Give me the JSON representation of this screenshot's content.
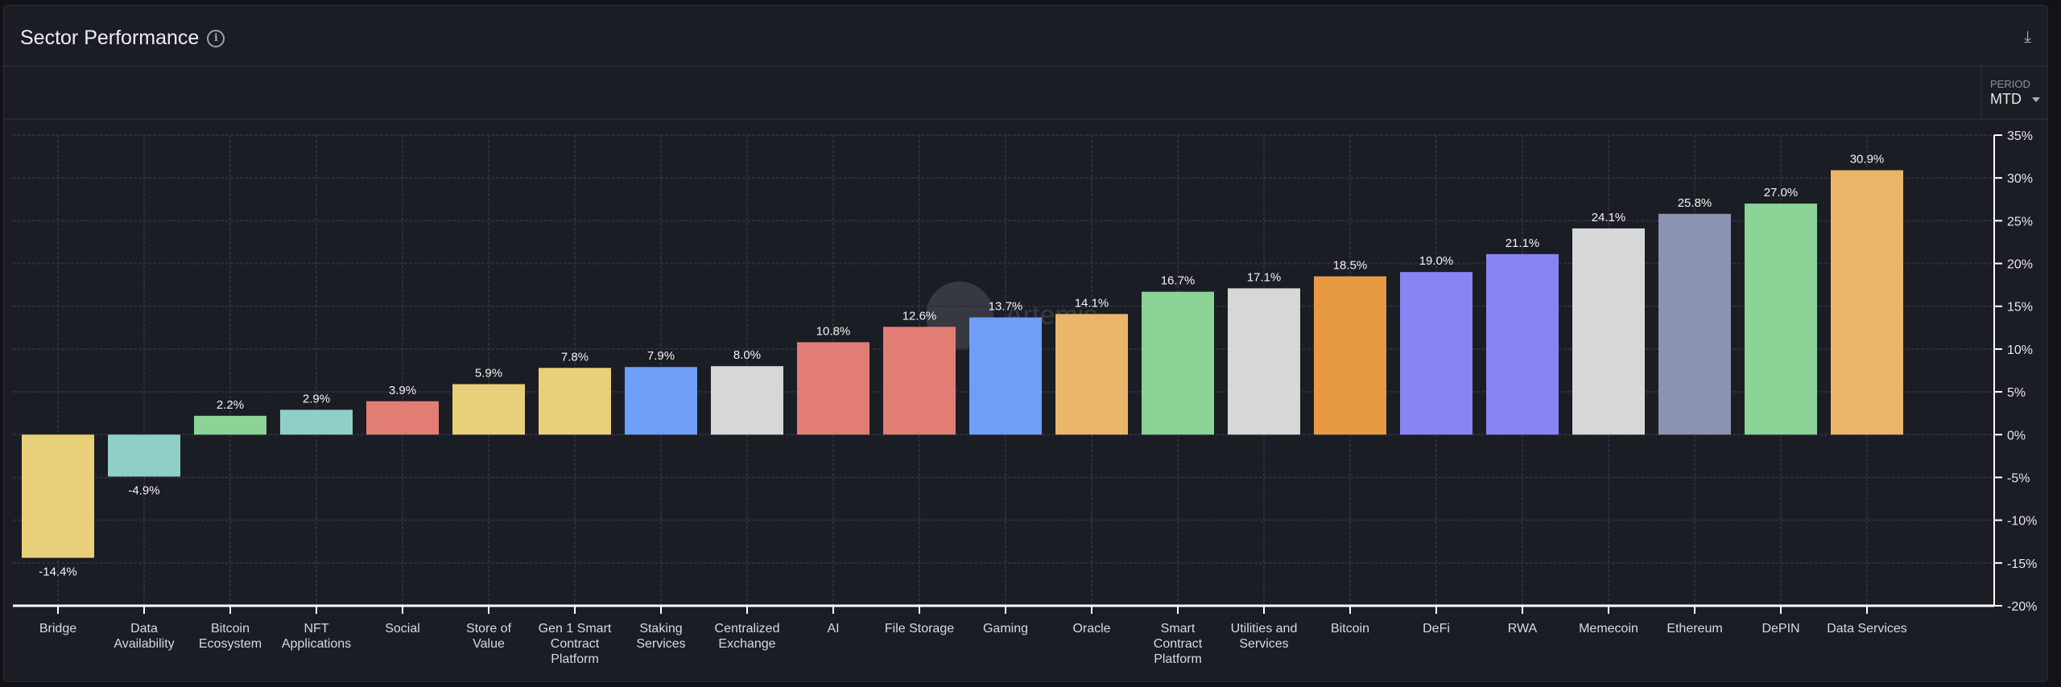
{
  "header": {
    "title": "Sector Performance",
    "info_icon": "info-icon",
    "download_icon": "download-icon"
  },
  "period": {
    "label": "PERIOD",
    "value": "MTD"
  },
  "watermark": "Artemis",
  "chart_data": {
    "type": "bar",
    "title": "",
    "xlabel": "",
    "ylabel": "",
    "ylim": [
      -20,
      35
    ],
    "yticks": [
      35,
      30,
      25,
      20,
      15,
      10,
      5,
      0,
      -5,
      -10,
      -15,
      -20
    ],
    "ytick_labels": [
      "35%",
      "30%",
      "25%",
      "20%",
      "15%",
      "10%",
      "5%",
      "0%",
      "-5%",
      "-10%",
      "-15%",
      "-20%"
    ],
    "grid": true,
    "y_axis_side": "right",
    "categories": [
      "Bridge",
      "Data Availability",
      "Bitcoin Ecosystem",
      "NFT Applications",
      "Social",
      "Store of Value",
      "Gen 1 Smart Contract Platform",
      "Staking Services",
      "Centralized Exchange",
      "AI",
      "File Storage",
      "Gaming",
      "Oracle",
      "Smart Contract Platform",
      "Utilities and Services",
      "Bitcoin",
      "DeFi",
      "RWA",
      "Memecoin",
      "Ethereum",
      "DePIN",
      "Data Services"
    ],
    "category_lines": [
      [
        "Bridge"
      ],
      [
        "Data",
        "Availability"
      ],
      [
        "Bitcoin",
        "Ecosystem"
      ],
      [
        "NFT",
        "Applications"
      ],
      [
        "Social"
      ],
      [
        "Store of",
        "Value"
      ],
      [
        "Gen 1 Smart",
        "Contract",
        "Platform"
      ],
      [
        "Staking",
        "Services"
      ],
      [
        "Centralized",
        "Exchange"
      ],
      [
        "AI"
      ],
      [
        "File Storage"
      ],
      [
        "Gaming"
      ],
      [
        "Oracle"
      ],
      [
        "Smart",
        "Contract",
        "Platform"
      ],
      [
        "Utilities and",
        "Services"
      ],
      [
        "Bitcoin"
      ],
      [
        "DeFi"
      ],
      [
        "RWA"
      ],
      [
        "Memecoin"
      ],
      [
        "Ethereum"
      ],
      [
        "DePIN"
      ],
      [
        "Data Services"
      ]
    ],
    "values": [
      -14.4,
      -4.9,
      2.2,
      2.9,
      3.9,
      5.9,
      7.8,
      7.9,
      8.0,
      10.8,
      12.6,
      13.7,
      14.1,
      16.7,
      17.1,
      18.5,
      19.0,
      21.1,
      24.1,
      25.8,
      27.0,
      30.9
    ],
    "value_labels": [
      "-14.4%",
      "-4.9%",
      "2.2%",
      "2.9%",
      "3.9%",
      "5.9%",
      "7.8%",
      "7.9%",
      "8.0%",
      "10.8%",
      "12.6%",
      "13.7%",
      "14.1%",
      "16.7%",
      "17.1%",
      "18.5%",
      "19.0%",
      "21.1%",
      "24.1%",
      "25.8%",
      "27.0%",
      "30.9%"
    ],
    "colors": [
      "#e8d07a",
      "#8fcfc8",
      "#8bd396",
      "#8fcfc8",
      "#e27d75",
      "#e8d07a",
      "#e8d07a",
      "#6e9ef8",
      "#d7d7d7",
      "#e27d75",
      "#e27d75",
      "#6e9ef8",
      "#ebb56a",
      "#8bd396",
      "#d7d7d7",
      "#e89a42",
      "#8785f2",
      "#8785f2",
      "#d7d7d7",
      "#8c93b0",
      "#8bd396",
      "#ebb56a"
    ]
  }
}
